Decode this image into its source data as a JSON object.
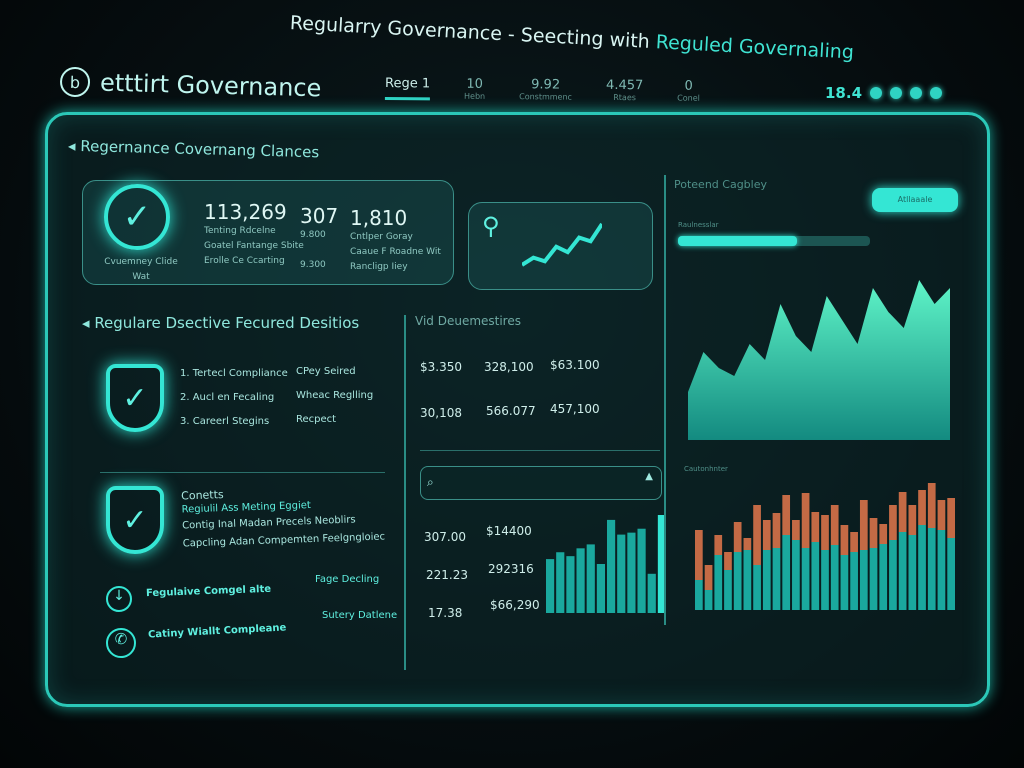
{
  "header": {
    "title_main": "Regularry Governance - Seecting with ",
    "title_highlight": "Reguled Governaling",
    "app_name": "etttirt Governance"
  },
  "nav": [
    {
      "label": "Rege 1",
      "sub": ""
    },
    {
      "label": "10",
      "sub": "Hebn"
    },
    {
      "label": "9.92",
      "sub": "Constmmenc"
    },
    {
      "label": "4.457",
      "sub": "Rtaes"
    },
    {
      "label": "0",
      "sub": "Conel"
    }
  ],
  "status": {
    "value": "18.4"
  },
  "overview": {
    "title": "Regernance Covernang Clances",
    "badge_label": "Cvuemney Clide Wat",
    "stats": [
      {
        "value": "113,269",
        "lines": [
          "Tenting Rdcelne",
          "Goatel Fantange Sbite",
          "Erolle Ce Ccarting"
        ]
      },
      {
        "value": "307",
        "lines": [
          "9.800",
          "",
          "9.300"
        ]
      },
      {
        "value": "1,810",
        "lines": [
          "Cntlper Goray",
          "Caaue F Roadne Wit",
          "Rancligp Iiey"
        ]
      }
    ]
  },
  "directives": {
    "title": "Regulare Dsective Fecured Desitios",
    "items": [
      {
        "label": "1. Tertecl Compliance",
        "status": "CPey Seired"
      },
      {
        "label": "2. Aucl en Fecaling",
        "status": "Wheac Reglling"
      },
      {
        "label": "3. Careerl Stegins",
        "status": "Recpect"
      }
    ],
    "contents_title": "Conetts",
    "contents_lines": [
      "Regiulil Ass Meting Eggiet",
      "Contig Inal Madan Precels Neoblirs",
      "Capcling Adan Compemten Feelgngloiec"
    ],
    "links": [
      {
        "label": "Fegulaive Comgel alte",
        "action": "Fage Decling"
      },
      {
        "label": "Catiny Wiallt Compleane",
        "action": "Sutery Datlene"
      }
    ]
  },
  "values": {
    "title": "Vid Deuemestires",
    "rows": [
      [
        "$3.350",
        "328,100",
        "$63.100"
      ],
      [
        "30,108",
        "566.077",
        "457,100"
      ]
    ],
    "search": {
      "placeholder": ""
    },
    "list": [
      [
        "307.00",
        "$14400"
      ],
      [
        "221.23",
        "292316"
      ],
      [
        "17.38",
        "$66,290"
      ]
    ]
  },
  "right": {
    "title": "Poteend Cagbley",
    "button": "Atllaaale",
    "progress_label": "Raulnesslar",
    "progress": 0.62,
    "bars_label": "Cautonhnter"
  },
  "charts": {
    "spark": [
      10,
      18,
      14,
      30,
      24,
      40,
      36,
      55
    ],
    "mini_bars": [
      55,
      62,
      58,
      66,
      70,
      50,
      95,
      80,
      82,
      86,
      40,
      100
    ],
    "area": [
      30,
      55,
      45,
      40,
      60,
      50,
      85,
      65,
      55,
      90,
      75,
      60,
      95,
      80,
      70,
      100,
      85,
      95
    ],
    "stacked": [
      [
        30,
        50
      ],
      [
        20,
        25
      ],
      [
        55,
        20
      ],
      [
        40,
        18
      ],
      [
        58,
        30
      ],
      [
        60,
        12
      ],
      [
        45,
        60
      ],
      [
        60,
        30
      ],
      [
        62,
        35
      ],
      [
        75,
        40
      ],
      [
        70,
        20
      ],
      [
        62,
        55
      ],
      [
        68,
        30
      ],
      [
        60,
        35
      ],
      [
        65,
        40
      ],
      [
        55,
        30
      ],
      [
        58,
        20
      ],
      [
        60,
        50
      ],
      [
        62,
        30
      ],
      [
        66,
        20
      ],
      [
        70,
        35
      ],
      [
        78,
        40
      ],
      [
        75,
        30
      ],
      [
        85,
        35
      ],
      [
        82,
        45
      ],
      [
        80,
        30
      ],
      [
        72,
        40
      ]
    ]
  },
  "colors": {
    "accent": "#34e6d4",
    "bar_teal": "#1aa89e",
    "bar_orange": "#c46a45",
    "border": "#2bc8b8"
  }
}
